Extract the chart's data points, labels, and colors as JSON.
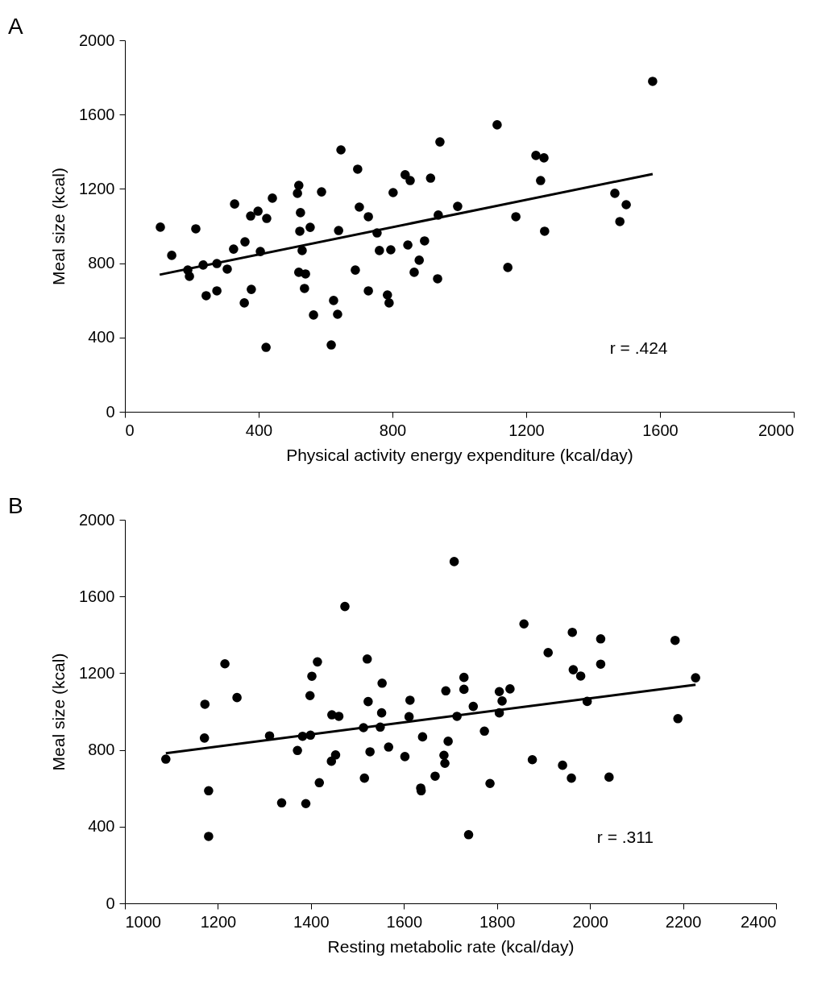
{
  "chart_data": [
    {
      "type": "scatter",
      "title": "A",
      "xlabel": "Physical activity energy expenditure (kcal/day)",
      "ylabel": "Meal size (kcal)",
      "xlim": [
        0,
        2000
      ],
      "xticks": [
        0,
        400,
        800,
        1200,
        1600,
        2000
      ],
      "ylim": [
        0,
        2000
      ],
      "yticks": [
        0,
        400,
        800,
        1200,
        1600,
        2000
      ],
      "grid": false,
      "annotations": [
        "r = .424"
      ],
      "series": [
        {
          "marker": "circle",
          "color": "#000000",
          "x": [
            106,
            140,
            188,
            193,
            212,
            234,
            243,
            275,
            275,
            306,
            325,
            328,
            359,
            357,
            378,
            376,
            398,
            405,
            424,
            441,
            422,
            520,
            516,
            525,
            523,
            554,
            530,
            520,
            540,
            537,
            564,
            588,
            617,
            624,
            636,
            639,
            646,
            689,
            696,
            701,
            728,
            728,
            754,
            761,
            795,
            785,
            790,
            802,
            838,
            853,
            846,
            865,
            880,
            896,
            914,
            935,
            937,
            942,
            995,
            1113,
            1229,
            1253,
            1243,
            1169,
            1255,
            1145,
            1465,
            1499,
            1480,
            1578
          ],
          "values": [
            994,
            842,
            763,
            729,
            985,
            790,
            625,
            798,
            651,
            768,
            876,
            1119,
            915,
            586,
            659,
            1054,
            1080,
            863,
            1041,
            1150,
            347,
            1219,
            1176,
            1072,
            972,
            993,
            868,
            751,
            742,
            664,
            521,
            1184,
            360,
            599,
            525,
            976,
            1410,
            763,
            1306,
            1102,
            1050,
            651,
            963,
            868,
            872,
            629,
            586,
            1180,
            1276,
            1245,
            898,
            751,
            816,
            920,
            1258,
            716,
            1059,
            1453,
            1106,
            1545,
            1380,
            1367,
            1245,
            1050,
            972,
            777,
            1176,
            1115,
            1024,
            1779
          ]
        },
        {
          "type": "line",
          "color": "#000000",
          "line_style": "solid",
          "x": [
            104,
            1578
          ],
          "values": [
            738,
            1280
          ]
        }
      ]
    },
    {
      "type": "scatter",
      "title": "B",
      "xlabel": "Resting metabolic rate (kcal/day)",
      "ylabel": "Meal size (kcal)",
      "xlim": [
        1000,
        2400
      ],
      "xticks": [
        1000,
        1200,
        1400,
        1600,
        1800,
        2000,
        2200,
        2400
      ],
      "ylim": [
        0,
        2000
      ],
      "yticks": [
        0,
        400,
        800,
        1200,
        1600,
        2000
      ],
      "grid": false,
      "annotations": [
        "r = .311"
      ],
      "series": [
        {
          "marker": "circle",
          "color": "#000000",
          "x": [
            1088,
            1172,
            1171,
            1180,
            1180,
            1215,
            1241,
            1311,
            1337,
            1371,
            1382,
            1399,
            1398,
            1402,
            1414,
            1389,
            1418,
            1445,
            1460,
            1444,
            1453,
            1473,
            1521,
            1513,
            1515,
            1523,
            1527,
            1553,
            1552,
            1549,
            1567,
            1602,
            1613,
            1611,
            1640,
            1636,
            1637,
            1667,
            1690,
            1695,
            1686,
            1688,
            1708,
            1729,
            1729,
            1714,
            1749,
            1773,
            1785,
            1739,
            1805,
            1811,
            1805,
            1828,
            1858,
            1876,
            1910,
            1941,
            1960,
            1962,
            1964,
            1980,
            1994,
            2023,
            2023,
            2041,
            2183,
            2189,
            2227
          ],
          "values": [
            752,
            1038,
            862,
            587,
            349,
            1249,
            1073,
            873,
            524,
            797,
            871,
            877,
            1083,
            1184,
            1259,
            520,
            629,
            983,
            975,
            741,
            774,
            1548,
            1274,
            916,
            653,
            1052,
            790,
            1148,
            993,
            919,
            815,
            765,
            1059,
            973,
            868,
            601,
            587,
            663,
            1108,
            845,
            772,
            730,
            1782,
            1178,
            1116,
            975,
            1027,
            898,
            625,
            358,
            1104,
            1055,
            993,
            1118,
            1457,
            749,
            1307,
            720,
            653,
            1413,
            1218,
            1185,
            1053,
            1247,
            1379,
            658,
            1371,
            963,
            1176
          ]
        },
        {
          "type": "line",
          "color": "#000000",
          "line_style": "solid",
          "x": [
            1088,
            2227
          ],
          "values": [
            783,
            1140
          ]
        }
      ]
    }
  ]
}
